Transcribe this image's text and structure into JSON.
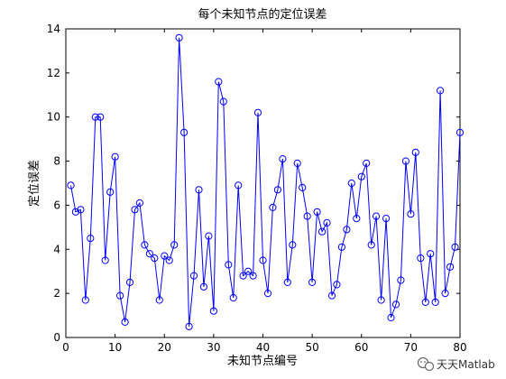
{
  "chart_data": {
    "type": "line",
    "title": "每个未知节点的定位误差",
    "xlabel": "未知节点编号",
    "ylabel": "定位误差",
    "xlim": [
      0,
      80
    ],
    "ylim": [
      0,
      14
    ],
    "xticks": [
      0,
      10,
      20,
      30,
      40,
      50,
      60,
      70,
      80
    ],
    "yticks": [
      0,
      2,
      4,
      6,
      8,
      10,
      12,
      14
    ],
    "grid": false,
    "legend": "none",
    "marker": "circle",
    "line_color": "#0000ff",
    "series": [
      {
        "x": [
          1,
          2,
          3,
          4,
          5,
          6,
          7,
          8,
          9,
          10,
          11,
          12,
          13,
          14,
          15,
          16,
          17,
          18,
          19,
          20,
          21,
          22,
          23,
          24,
          25,
          26,
          27,
          28,
          29,
          30,
          31,
          32,
          33,
          34,
          35,
          36,
          37,
          38,
          39,
          40,
          41,
          42,
          43,
          44,
          45,
          46,
          47,
          48,
          49,
          50,
          51,
          52,
          53,
          54,
          55,
          56,
          57,
          58,
          59,
          60,
          61,
          62,
          63,
          64,
          65,
          66,
          67,
          68,
          69,
          70,
          71,
          72,
          73,
          74,
          75,
          76,
          77,
          78,
          79,
          80
        ],
        "values": [
          6.9,
          5.7,
          5.8,
          1.7,
          4.5,
          10.0,
          10.0,
          3.5,
          6.6,
          8.2,
          1.9,
          0.7,
          2.5,
          5.8,
          6.1,
          4.2,
          3.8,
          3.6,
          1.7,
          3.7,
          3.5,
          4.2,
          13.6,
          9.3,
          0.5,
          2.8,
          6.7,
          2.3,
          4.6,
          1.2,
          11.6,
          10.7,
          3.3,
          1.8,
          6.9,
          2.8,
          3.0,
          2.8,
          10.2,
          3.5,
          2.0,
          5.9,
          6.7,
          8.1,
          2.5,
          4.2,
          7.9,
          6.8,
          5.5,
          2.5,
          5.7,
          4.8,
          5.2,
          1.9,
          2.4,
          4.1,
          4.9,
          7.0,
          5.4,
          7.3,
          7.9,
          4.2,
          5.5,
          1.7,
          5.4,
          0.9,
          1.5,
          2.6,
          8.0,
          5.6,
          8.4,
          3.6,
          1.6,
          3.8,
          1.6,
          11.2,
          2.0,
          3.2,
          4.1,
          9.3
        ]
      }
    ]
  },
  "watermark": {
    "text": "天天Matlab"
  }
}
